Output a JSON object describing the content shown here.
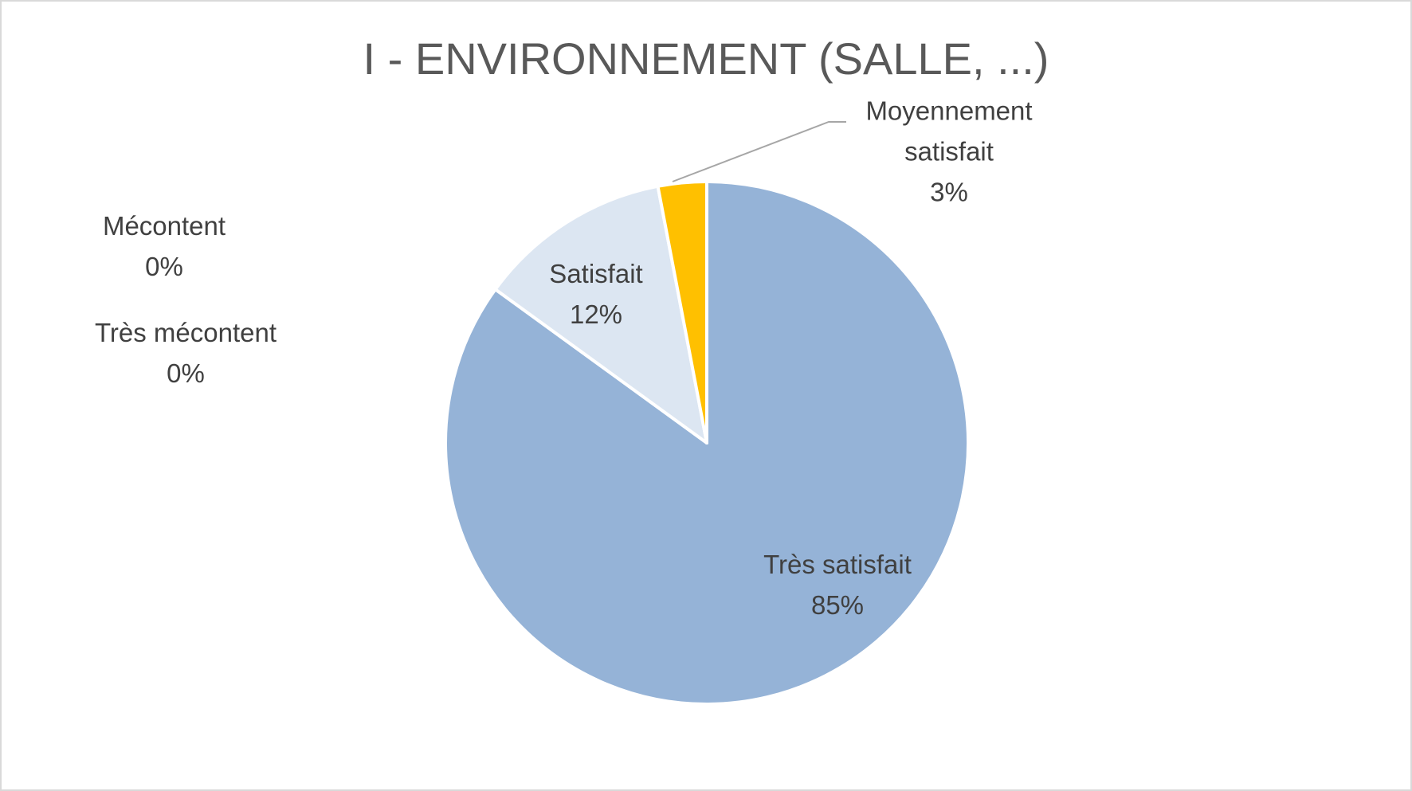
{
  "chart_data": {
    "type": "pie",
    "title": "I - ENVIRONNEMENT (SALLE, ...)",
    "categories": [
      "Très satisfait",
      "Satisfait",
      "Moyennement satisfait",
      "Mécontent",
      "Très mécontent"
    ],
    "values": [
      85,
      12,
      3,
      0,
      0
    ],
    "value_labels": [
      "85%",
      "12%",
      "3%",
      "0%",
      "0%"
    ],
    "colors": [
      "#95b3d7",
      "#dce6f2",
      "#ffc000",
      "#4f81bd",
      "#1f497d"
    ]
  }
}
